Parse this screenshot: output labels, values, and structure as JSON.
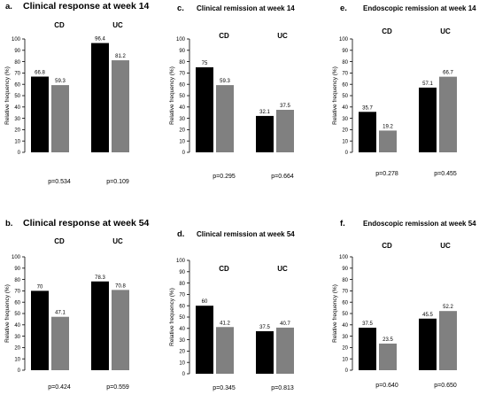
{
  "chart_data": [
    {
      "type": "bar",
      "letter": "a.",
      "title": "Clinical response at week 14",
      "ylabel": "Relative frequency (%)",
      "ylim": [
        0,
        100
      ],
      "yticks": [
        0,
        10,
        20,
        30,
        40,
        50,
        60,
        70,
        80,
        90,
        100
      ],
      "categories": [
        "CD",
        "UC"
      ],
      "series": [
        {
          "color": "#000000",
          "values": [
            66.8,
            96.4
          ],
          "labels": [
            "66.8",
            "96.4"
          ]
        },
        {
          "color": "#808080",
          "values": [
            59.3,
            81.2
          ],
          "labels": [
            "59.3",
            "81.2"
          ]
        }
      ],
      "pvalues": [
        "p=0.534",
        "p=0.109"
      ]
    },
    {
      "type": "bar",
      "letter": "c.",
      "title": "Clinical remission at week 14",
      "ylabel": "Relative frequency (%)",
      "ylim": [
        0,
        100
      ],
      "yticks": [
        0,
        10,
        20,
        30,
        40,
        50,
        60,
        70,
        80,
        90,
        100
      ],
      "categories": [
        "CD",
        "UC"
      ],
      "series": [
        {
          "color": "#000000",
          "values": [
            75,
            32.1
          ],
          "labels": [
            "75",
            "32.1"
          ]
        },
        {
          "color": "#808080",
          "values": [
            59.3,
            37.5
          ],
          "labels": [
            "59.3",
            "37.5"
          ]
        }
      ],
      "pvalues": [
        "p=0.295",
        "p=0.664"
      ]
    },
    {
      "type": "bar",
      "letter": "e.",
      "title": "Endoscopic remission at week 14",
      "ylabel": "Relative frequency (%)",
      "ylim": [
        0,
        100
      ],
      "yticks": [
        0,
        10,
        20,
        30,
        40,
        50,
        60,
        70,
        80,
        90,
        100
      ],
      "categories": [
        "CD",
        "UC"
      ],
      "series": [
        {
          "color": "#000000",
          "values": [
            35.7,
            57.1
          ],
          "labels": [
            "35.7",
            "57.1"
          ]
        },
        {
          "color": "#808080",
          "values": [
            19.2,
            66.7
          ],
          "labels": [
            "19.2",
            "66.7"
          ]
        }
      ],
      "pvalues": [
        "p=0.278",
        "p=0.455"
      ]
    },
    {
      "type": "bar",
      "letter": "b.",
      "title": "Clinical response at week 54",
      "ylabel": "Relative frequency (%)",
      "ylim": [
        0,
        100
      ],
      "yticks": [
        0,
        10,
        20,
        30,
        40,
        50,
        60,
        70,
        80,
        90,
        100
      ],
      "categories": [
        "CD",
        "UC"
      ],
      "series": [
        {
          "color": "#000000",
          "values": [
            70,
            78.3
          ],
          "labels": [
            "70",
            "78.3"
          ]
        },
        {
          "color": "#808080",
          "values": [
            47.1,
            70.8
          ],
          "labels": [
            "47.1",
            "70.8"
          ]
        }
      ],
      "pvalues": [
        "p=0.424",
        "p=0.559"
      ]
    },
    {
      "type": "bar",
      "letter": "d.",
      "title": "Clinical remission at week 54",
      "ylabel": "Relative frequency (%)",
      "ylim": [
        0,
        100
      ],
      "yticks": [
        0,
        10,
        20,
        30,
        40,
        50,
        60,
        70,
        80,
        90,
        100
      ],
      "categories": [
        "CD",
        "UC"
      ],
      "series": [
        {
          "color": "#000000",
          "values": [
            60,
            37.5
          ],
          "labels": [
            "60",
            "37.5"
          ]
        },
        {
          "color": "#808080",
          "values": [
            41.2,
            40.7
          ],
          "labels": [
            "41.2",
            "40.7"
          ]
        }
      ],
      "pvalues": [
        "p=0.345",
        "p=0.813"
      ]
    },
    {
      "type": "bar",
      "letter": "f.",
      "title": "Endoscopic remission at week 54",
      "ylabel": "Relative frequency (%)",
      "ylim": [
        0,
        100
      ],
      "yticks": [
        0,
        10,
        20,
        30,
        40,
        50,
        60,
        70,
        80,
        90,
        100
      ],
      "categories": [
        "CD",
        "UC"
      ],
      "series": [
        {
          "color": "#000000",
          "values": [
            37.5,
            45.5
          ],
          "labels": [
            "37.5",
            "45.5"
          ]
        },
        {
          "color": "#808080",
          "values": [
            23.5,
            52.2
          ],
          "labels": [
            "23.5",
            "52.2"
          ]
        }
      ],
      "pvalues": [
        "p=0.640",
        "p=0.650"
      ]
    }
  ]
}
